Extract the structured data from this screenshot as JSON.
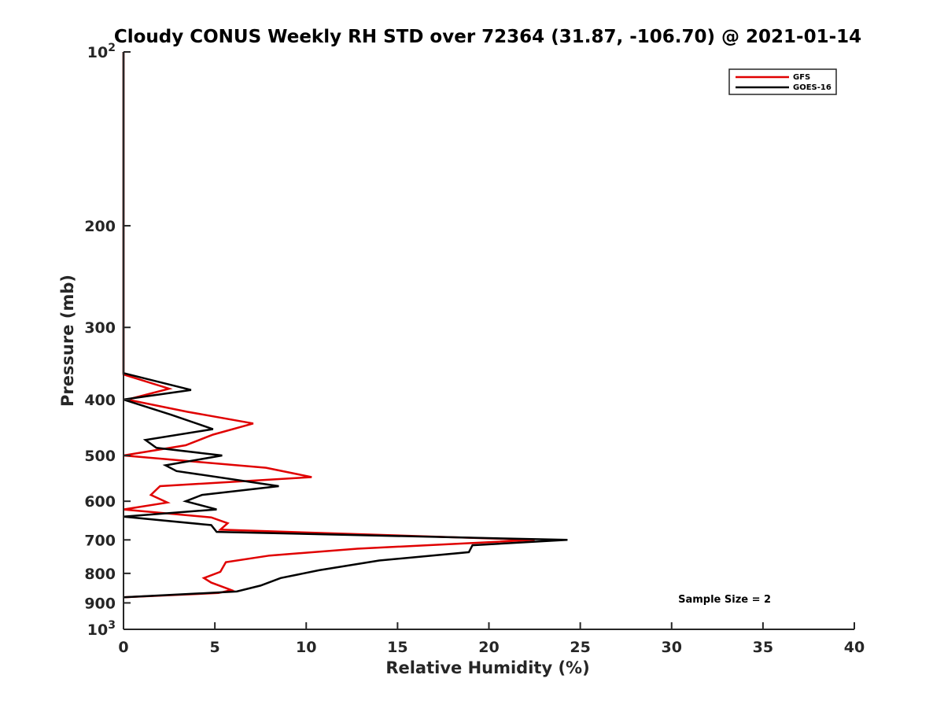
{
  "chart_data": {
    "type": "line",
    "title": "Cloudy CONUS Weekly RH STD over 72364 (31.87, -106.70) @ 2021-01-14",
    "xlabel": "Relative Humidity (%)",
    "ylabel": "Pressure (mb)",
    "xlim": [
      0,
      40
    ],
    "ylim": [
      1000,
      100
    ],
    "y_scale": "log",
    "y_reversed": true,
    "grid": false,
    "legend_position": "top-right",
    "x_ticks": [
      {
        "value": 0,
        "label": "0"
      },
      {
        "value": 5,
        "label": "5"
      },
      {
        "value": 10,
        "label": "10"
      },
      {
        "value": 15,
        "label": "15"
      },
      {
        "value": 20,
        "label": "20"
      },
      {
        "value": 25,
        "label": "25"
      },
      {
        "value": 30,
        "label": "30"
      },
      {
        "value": 35,
        "label": "35"
      },
      {
        "value": 40,
        "label": "40"
      }
    ],
    "y_ticks": [
      {
        "value": 100,
        "base": "10",
        "exp": "2"
      },
      {
        "value": 200,
        "label": "200"
      },
      {
        "value": 300,
        "label": "300"
      },
      {
        "value": 400,
        "label": "400"
      },
      {
        "value": 500,
        "label": "500"
      },
      {
        "value": 600,
        "label": "600"
      },
      {
        "value": 700,
        "label": "700"
      },
      {
        "value": 800,
        "label": "800"
      },
      {
        "value": 900,
        "label": "900"
      },
      {
        "value": 1000,
        "base": "10",
        "exp": "3"
      }
    ],
    "series": [
      {
        "name": "GFS",
        "color": "#e00000",
        "points": [
          [
            0,
            100
          ],
          [
            0,
            150
          ],
          [
            0,
            200
          ],
          [
            0,
            250
          ],
          [
            0,
            300
          ],
          [
            0,
            350
          ],
          [
            0,
            362
          ],
          [
            2.5,
            383
          ],
          [
            0.2,
            400
          ],
          [
            3.5,
            420
          ],
          [
            7.1,
            440
          ],
          [
            4.9,
            460
          ],
          [
            3.4,
            480
          ],
          [
            0,
            500
          ],
          [
            3.8,
            512
          ],
          [
            7.8,
            525
          ],
          [
            10.3,
            545
          ],
          [
            2.0,
            565
          ],
          [
            1.5,
            585
          ],
          [
            2.4,
            603
          ],
          [
            0,
            620
          ],
          [
            4.8,
            640
          ],
          [
            5.7,
            655
          ],
          [
            5.3,
            672
          ],
          [
            22.5,
            700
          ],
          [
            12.8,
            725
          ],
          [
            8.0,
            745
          ],
          [
            5.6,
            765
          ],
          [
            5.3,
            795
          ],
          [
            4.4,
            815
          ],
          [
            4.8,
            830
          ],
          [
            5.9,
            855
          ],
          [
            5.2,
            865
          ],
          [
            0,
            880
          ]
        ]
      },
      {
        "name": "GOES-16",
        "color": "#000000",
        "points": [
          [
            0,
            100
          ],
          [
            0,
            150
          ],
          [
            0,
            200
          ],
          [
            0,
            250
          ],
          [
            0,
            300
          ],
          [
            0,
            350
          ],
          [
            0,
            360
          ],
          [
            3.7,
            385
          ],
          [
            0,
            400
          ],
          [
            2.6,
            425
          ],
          [
            4.9,
            450
          ],
          [
            1.2,
            470
          ],
          [
            1.8,
            485
          ],
          [
            5.4,
            500
          ],
          [
            2.3,
            520
          ],
          [
            2.9,
            532
          ],
          [
            8.5,
            565
          ],
          [
            4.3,
            585
          ],
          [
            3.4,
            600
          ],
          [
            5.1,
            620
          ],
          [
            0,
            638
          ],
          [
            4.8,
            660
          ],
          [
            5.1,
            678
          ],
          [
            24.3,
            700
          ],
          [
            19.1,
            715
          ],
          [
            18.9,
            735
          ],
          [
            14.0,
            760
          ],
          [
            10.7,
            790
          ],
          [
            8.6,
            815
          ],
          [
            7.5,
            840
          ],
          [
            6.2,
            860
          ],
          [
            0,
            880
          ]
        ]
      }
    ],
    "annotations": [
      {
        "text": "Sample Size = 2",
        "x": 32.9,
        "y": 910
      }
    ]
  }
}
